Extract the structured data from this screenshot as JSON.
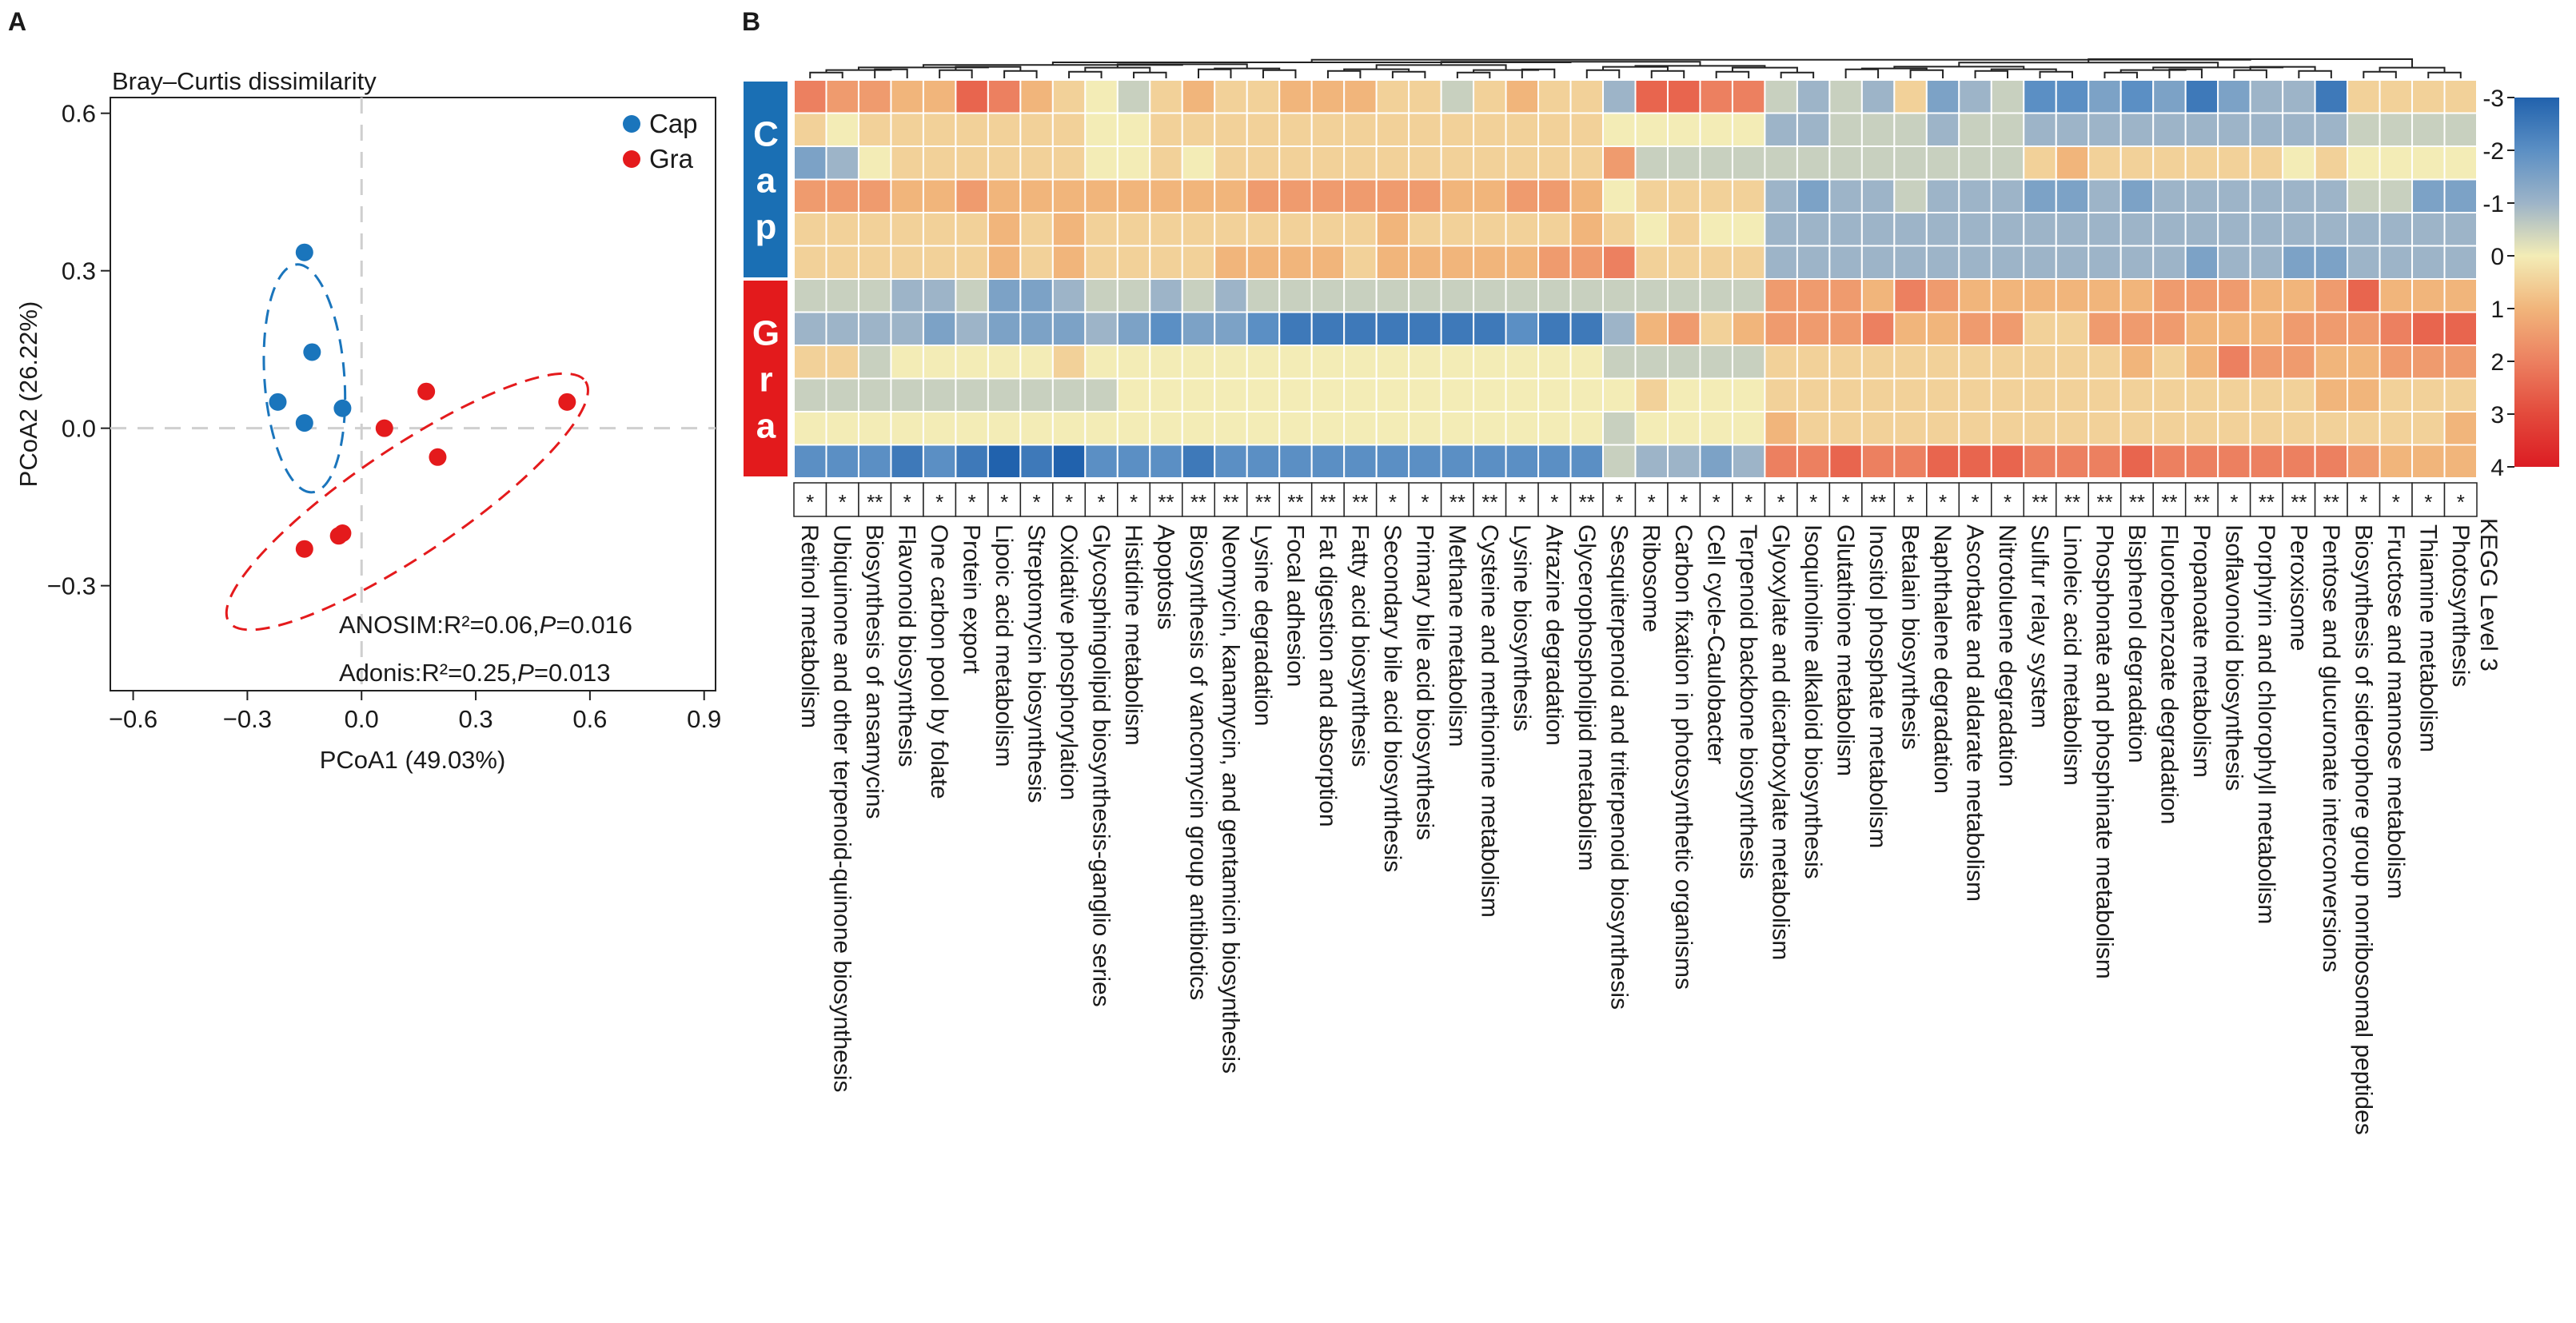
{
  "panels": {
    "a": "A",
    "b": "B"
  },
  "chart_data": [
    {
      "type": "scatter",
      "title": "Bray–Curtis dissimilarity",
      "xlabel": "PCoA1 (49.03%)",
      "ylabel": "PCoA2 (26.22%)",
      "xlim": [
        -0.66,
        0.93
      ],
      "ylim": [
        -0.5,
        0.63
      ],
      "xticks": [
        -0.6,
        -0.3,
        0.0,
        0.3,
        0.6,
        0.9
      ],
      "yticks": [
        -0.3,
        0.0,
        0.3,
        0.6
      ],
      "xtick_labels": [
        "−0.6",
        "−0.3",
        "0.0",
        "0.3",
        "0.6",
        "0.9"
      ],
      "ytick_labels": [
        "−0.3",
        "0.0",
        "0.3",
        "0.6"
      ],
      "grid": false,
      "reference_lines": "dashed lines at x=0 and y=0",
      "legend_position": "top-right",
      "series": [
        {
          "name": "Cap",
          "color": "#1a75bc",
          "x": [
            -0.15,
            -0.13,
            -0.22,
            -0.05,
            -0.15
          ],
          "y": [
            0.335,
            0.145,
            0.05,
            0.038,
            0.01
          ],
          "ellipse": {
            "cx": -0.15,
            "cy": 0.095,
            "rx": 0.3,
            "ry": 0.105,
            "angle_deg": -86,
            "style": "dashed"
          }
        },
        {
          "name": "Gra",
          "color": "#e41a1c",
          "x": [
            0.17,
            0.54,
            0.06,
            0.2,
            -0.15,
            -0.06,
            -0.05
          ],
          "y": [
            0.07,
            0.05,
            0.0,
            -0.055,
            -0.23,
            -0.205,
            -0.2
          ],
          "ellipse": {
            "cx": 0.12,
            "cy": -0.14,
            "rx": 0.565,
            "ry": 0.14,
            "angle_deg": 34,
            "style": "dashed"
          }
        }
      ],
      "annotations": [
        {
          "prefix": "ANOSIM:R²=0.06,",
          "p_label": "P",
          "suffix": "=0.016"
        },
        {
          "prefix": "Adonis:R²=0.25,",
          "p_label": "P",
          "suffix": "=0.013"
        }
      ]
    },
    {
      "type": "heatmap",
      "title": "",
      "xlabel": "",
      "ylabel": "",
      "groups": [
        {
          "name": "Cap",
          "letters": [
            "C",
            "a",
            "p"
          ],
          "color": "#1a6fb4",
          "rows": 6
        },
        {
          "name": "Gra",
          "letters": [
            "G",
            "r",
            "a"
          ],
          "color": "#e31a1c",
          "rows": 6
        }
      ],
      "colorbar": {
        "title": "KEGG Level 3",
        "min": -3,
        "max": 4,
        "ticks": [
          -3,
          -2,
          -1,
          0,
          1,
          2,
          3,
          4
        ],
        "tick_labels": [
          "-3",
          "-2",
          "-1",
          "0",
          "1",
          "2",
          "3",
          "4"
        ],
        "colors": [
          "#2162ad",
          "#5b8fc4",
          "#9db4c8",
          "#f3ecb6",
          "#f1b57b",
          "#ec8060",
          "#e34a3c",
          "#dc1c23"
        ]
      },
      "columns": [
        "Retinol metabolism",
        "Ubiquinone and other terpenoid-quinone biosynthesis",
        "Biosynthesis of ansamycins",
        "Flavonoid biosynthesis",
        "One carbon pool by folate",
        "Protein export",
        "Lipoic acid metabolism",
        "Streptomycin biosynthesis",
        "Oxidative phosphorylation",
        "Glycosphingolipid biosynthesis-ganglio series",
        "Histidine metabolism",
        "Apoptosis",
        "Biosynthesis of vancomycin group antibiotics",
        "Neomycin, kanamycin, and gentamicin biosynthesis",
        "Lysine degradation",
        "Focal adhesion",
        "Fat digestion and absorption",
        "Fatty acid biosynthesis",
        "Secondary bile acid biosynthesis",
        "Primary bile acid biosynthesis",
        "Methane metabolism",
        "Cysteine and methionine metabolism",
        "Lysine biosynthesis",
        "Atrazine degradation",
        "Glycerophospholipid metabolism",
        "Sesquiterpenoid and triterpenoid biosynthesis",
        "Ribosome",
        "Carbon fixation in photosynthetic organisms",
        "Cell cycle-Caulobacter",
        "Terpenoid backbone biosynthesis",
        "Glyoxylate and dicarboxylate metabolism",
        "Isoquinoline alkaloid biosynthesis",
        "Glutathione metabolism",
        "Inositol phosphate metabolism",
        "Betalain biosynthesis",
        "Naphthalene degradation",
        "Ascorbate and aldarate metabolism",
        "Nitrotoluene degradation",
        "Sulfur relay system",
        "Linoleic acid metabolism",
        "Phosphonate and phosphinate metabolism",
        "Bisphenol degradation",
        "Fluorobenzoate degradation",
        "Propanoate metabolism",
        "Isoflavonoid biosynthesis",
        "Porphyrin and chlorophyll metabolism",
        "Peroxisome",
        "Pentose and glucuronate interconversions",
        "Biosynthesis of siderophore group nonribosomal peptides",
        "Fructose and mannose metabolism",
        "Thiamine metabolism",
        "Photosynthesis"
      ],
      "significance": [
        "*",
        "*",
        "**",
        "*",
        "*",
        "*",
        "*",
        "*",
        "*",
        "*",
        "*",
        "**",
        "**",
        "**",
        "**",
        "**",
        "**",
        "**",
        "*",
        "*",
        "**",
        "**",
        "*",
        "*",
        "**",
        "*",
        "*",
        "*",
        "*",
        "*",
        "*",
        "*",
        "*",
        "**",
        "*",
        "*",
        "*",
        "*",
        "**",
        "**",
        "**",
        "**",
        "**",
        "**",
        "*",
        "**",
        "**",
        "**",
        "*",
        "*",
        "*",
        "*"
      ],
      "values_approx": [
        [
          2.0,
          1.5,
          1.5,
          1.0,
          1.0,
          2.5,
          2.0,
          1.0,
          0.5,
          0,
          -0.5,
          0.5,
          1.0,
          0.5,
          0.5,
          1.0,
          1.0,
          1.0,
          0.5,
          0.5,
          -0.5,
          0.5,
          1.0,
          0.5,
          0.5,
          -1.0,
          2.5,
          2.5,
          2.0,
          2.0,
          -0.5,
          -1.0,
          -0.5,
          -1.0,
          0.5,
          -1.5,
          -1.0,
          -0.5,
          -2.0,
          -2.0,
          -1.5,
          -2.0,
          -1.5,
          -2.5,
          -1.5,
          -1.0,
          -1.0,
          -2.5,
          0.5,
          0.5,
          0.5,
          0.5
        ],
        [
          0.5,
          0,
          0.5,
          0.5,
          0.5,
          0.5,
          0.5,
          0.5,
          0.5,
          0,
          0,
          0.5,
          0.5,
          0.5,
          0.5,
          0.5,
          0.5,
          0.5,
          0.5,
          0.5,
          0.5,
          0.5,
          0.5,
          0.5,
          0.5,
          0,
          0,
          0,
          0,
          0,
          -1.0,
          -1.0,
          -0.5,
          -0.5,
          -0.5,
          -1.0,
          -0.5,
          -0.5,
          -1.0,
          -1.0,
          -1.0,
          -1.0,
          -1.0,
          -1.0,
          -1.0,
          -1.0,
          -1.0,
          -1.0,
          -0.5,
          -0.5,
          -0.5,
          -0.5
        ],
        [
          -1.5,
          -1.0,
          0,
          0.5,
          0.5,
          0.5,
          0.5,
          0.5,
          0.5,
          0,
          0,
          0.5,
          0,
          0.5,
          0.5,
          0.5,
          0.5,
          0.5,
          0.5,
          0.5,
          0.5,
          0.5,
          0.5,
          0.5,
          0.5,
          1.5,
          -0.5,
          -0.5,
          -0.5,
          -0.5,
          -0.5,
          -0.5,
          -0.5,
          -0.5,
          -0.5,
          -0.5,
          -0.5,
          -0.5,
          0.5,
          1.0,
          0.5,
          0.5,
          0.5,
          0.5,
          0.5,
          0.5,
          0,
          0.5,
          0,
          0,
          0,
          0
        ],
        [
          1.5,
          1.5,
          1.5,
          1.0,
          1.0,
          1.5,
          1.0,
          1.0,
          1.0,
          1.0,
          1.0,
          1.0,
          1.0,
          1.0,
          1.5,
          1.5,
          1.5,
          1.5,
          1.5,
          1.5,
          1.0,
          1.0,
          1.5,
          1.5,
          1.0,
          0,
          0.5,
          0.5,
          0.5,
          0.5,
          -1.0,
          -1.5,
          -1.0,
          -1.0,
          -0.5,
          -1.0,
          -1.0,
          -1.0,
          -1.5,
          -1.5,
          -1.0,
          -1.5,
          -1.0,
          -1.0,
          -1.0,
          -1.0,
          -1.0,
          -1.0,
          -0.5,
          -0.5,
          -1.5,
          -1.5
        ],
        [
          0.5,
          0.5,
          0.5,
          0.5,
          0.5,
          0.5,
          1.0,
          0.5,
          1.0,
          0.5,
          0.5,
          0.5,
          0.5,
          0.5,
          0.5,
          0.5,
          0.5,
          0.5,
          1.0,
          0.5,
          0.5,
          0.5,
          0.5,
          0.5,
          1.0,
          0.5,
          0,
          0.5,
          0,
          0,
          -1.0,
          -1.0,
          -1.0,
          -1.0,
          -1.0,
          -1.0,
          -1.0,
          -1.0,
          -1.0,
          -1.0,
          -1.0,
          -1.0,
          -1.0,
          -1.0,
          -1.0,
          -1.0,
          -1.0,
          -1.0,
          -1.0,
          -1.0,
          -1.0,
          -1.0
        ],
        [
          0.5,
          0.5,
          0.5,
          0.5,
          0.5,
          0.5,
          1.0,
          0.5,
          1.0,
          0.5,
          0.5,
          0.5,
          0.5,
          1.0,
          1.0,
          1.0,
          1.0,
          0.5,
          1.0,
          1.0,
          1.0,
          1.0,
          1.0,
          1.5,
          1.5,
          2.0,
          0.5,
          0.5,
          0.5,
          0.5,
          -1.0,
          -1.0,
          -1.0,
          -1.0,
          -1.0,
          -1.0,
          -1.0,
          -1.0,
          -1.0,
          -1.0,
          -1.0,
          -1.0,
          -1.0,
          -1.5,
          -1.0,
          -1.0,
          -1.5,
          -1.5,
          -1.0,
          -1.0,
          -1.0,
          -1.0
        ],
        [
          -0.5,
          -0.5,
          -0.5,
          -1.0,
          -1.0,
          -0.5,
          -1.5,
          -1.5,
          -1.0,
          -0.5,
          -0.5,
          -1.0,
          -0.5,
          -1.0,
          -0.5,
          -0.5,
          -0.5,
          -0.5,
          -0.5,
          -0.5,
          -0.5,
          -0.5,
          -0.5,
          -0.5,
          -0.5,
          -0.5,
          -0.5,
          -0.5,
          -0.5,
          -0.5,
          1.5,
          1.5,
          1.5,
          1.0,
          2.0,
          1.5,
          1.0,
          1.0,
          1.0,
          1.0,
          1.0,
          1.0,
          1.5,
          1.5,
          1.5,
          1.0,
          1.0,
          1.5,
          2.5,
          1.0,
          1.0,
          1.0
        ],
        [
          -1.0,
          -1.0,
          -1.0,
          -1.0,
          -1.5,
          -1.0,
          -1.5,
          -1.5,
          -1.5,
          -1.0,
          -1.5,
          -2.0,
          -1.5,
          -1.5,
          -2.0,
          -2.5,
          -2.5,
          -2.5,
          -2.5,
          -2.5,
          -2.5,
          -2.5,
          -2.0,
          -2.5,
          -2.5,
          -1.0,
          1.0,
          1.5,
          0.5,
          1.0,
          1.5,
          1.5,
          1.5,
          2.0,
          1.0,
          1.0,
          1.5,
          1.5,
          0.5,
          0.5,
          1.5,
          1.5,
          1.5,
          1.0,
          1.0,
          1.0,
          1.5,
          1.5,
          1.5,
          2.0,
          2.5,
          2.5
        ],
        [
          0.5,
          0.5,
          -0.5,
          0,
          0,
          0,
          0,
          0,
          0.5,
          0,
          0,
          0,
          0,
          0,
          0,
          0,
          0,
          0,
          0,
          0,
          0,
          0,
          0,
          0,
          0,
          -0.5,
          -0.5,
          -0.5,
          -0.5,
          -0.5,
          0.5,
          0.5,
          0.5,
          0.5,
          0.5,
          0.5,
          0.5,
          0.5,
          0.5,
          0.5,
          0.5,
          1.0,
          0.5,
          1.0,
          2.0,
          1.5,
          1.5,
          1.0,
          1.0,
          1.5,
          1.5,
          1.5
        ],
        [
          -0.5,
          -0.5,
          -0.5,
          -0.5,
          -0.5,
          -0.5,
          -0.5,
          -0.5,
          -0.5,
          -0.5,
          0,
          0,
          0,
          0,
          0,
          0,
          0,
          0,
          0,
          0,
          0,
          0,
          0,
          0,
          0,
          0,
          0.5,
          0,
          0,
          0,
          0.5,
          0.5,
          0.5,
          0.5,
          0.5,
          0.5,
          0.5,
          0.5,
          0.5,
          0.5,
          0.5,
          0.5,
          0.5,
          0.5,
          0.5,
          0.5,
          0.5,
          1.0,
          1.0,
          0.5,
          0.5,
          0.5
        ],
        [
          0,
          0,
          0,
          0,
          0,
          0,
          0,
          0,
          0,
          0,
          0,
          0,
          0,
          0,
          0,
          0,
          0,
          0,
          0,
          0,
          0,
          0,
          0,
          0,
          0,
          -0.5,
          0,
          0,
          0,
          0,
          1.0,
          0.5,
          0.5,
          0.5,
          0.5,
          0.5,
          0.5,
          0.5,
          0.5,
          0.5,
          0.5,
          0.5,
          0.5,
          0.5,
          0.5,
          0.5,
          0.5,
          0.5,
          0.5,
          0.5,
          0.5,
          1.0
        ],
        [
          -2.0,
          -2.0,
          -2.0,
          -2.5,
          -2.0,
          -2.5,
          -3.0,
          -2.5,
          -3.0,
          -2.0,
          -2.0,
          -2.0,
          -2.5,
          -2.0,
          -2.0,
          -2.0,
          -2.0,
          -2.0,
          -2.0,
          -2.0,
          -2.0,
          -2.0,
          -2.0,
          -2.0,
          -2.0,
          -0.5,
          -1.0,
          -1.0,
          -1.5,
          -1.0,
          2.0,
          2.0,
          2.5,
          2.0,
          2.0,
          2.5,
          2.5,
          2.5,
          2.0,
          2.0,
          2.0,
          2.5,
          2.0,
          2.0,
          2.0,
          2.0,
          2.0,
          2.0,
          1.5,
          1.0,
          1.0,
          1.0
        ]
      ]
    }
  ]
}
